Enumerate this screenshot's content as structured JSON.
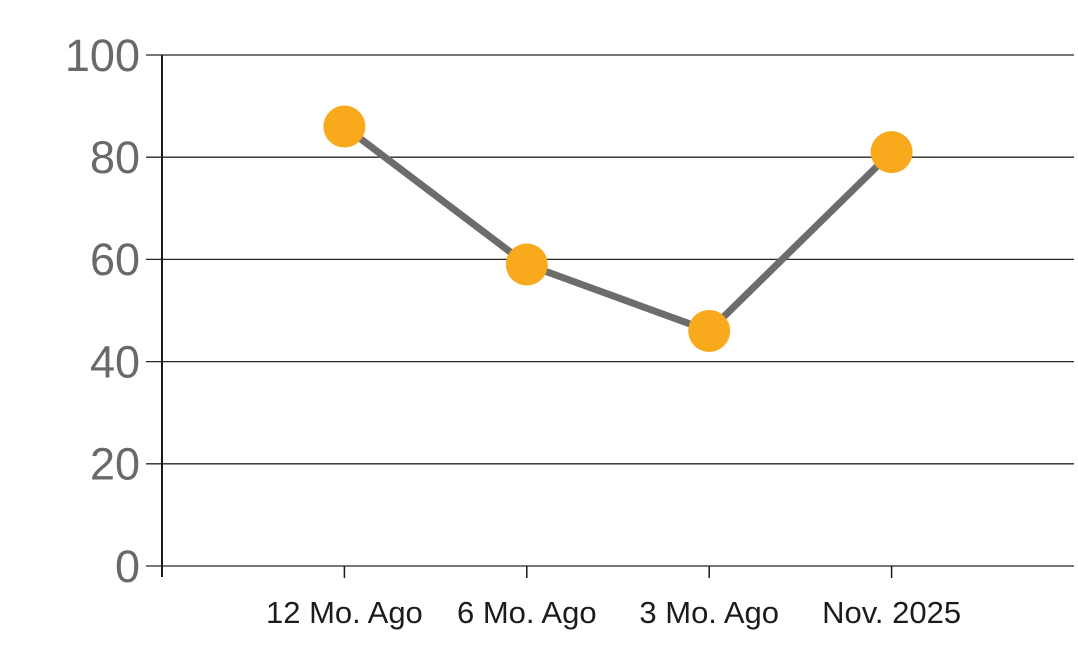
{
  "chart_data": {
    "type": "line",
    "title": "",
    "categories": [
      "12 Mo. Ago",
      "6 Mo. Ago",
      "3 Mo. Ago",
      "Nov. 2025"
    ],
    "series": [
      {
        "name": "values",
        "values": [
          86,
          59,
          46,
          81
        ]
      }
    ],
    "xlabel": "",
    "ylabel": "",
    "ylim": [
      0,
      100
    ],
    "yticks": [
      0,
      20,
      40,
      60,
      80,
      100
    ],
    "grid": "horizontal",
    "legend": "none",
    "marker": "circle",
    "colors": {
      "marker": "#F8A91C",
      "line": "#6C6C6C",
      "grid": "#262626",
      "axis": "#1A1A1A",
      "y_tick_label": "#696969",
      "x_tick_label": "#1C1C1C",
      "background": "#FFFFFF"
    }
  }
}
